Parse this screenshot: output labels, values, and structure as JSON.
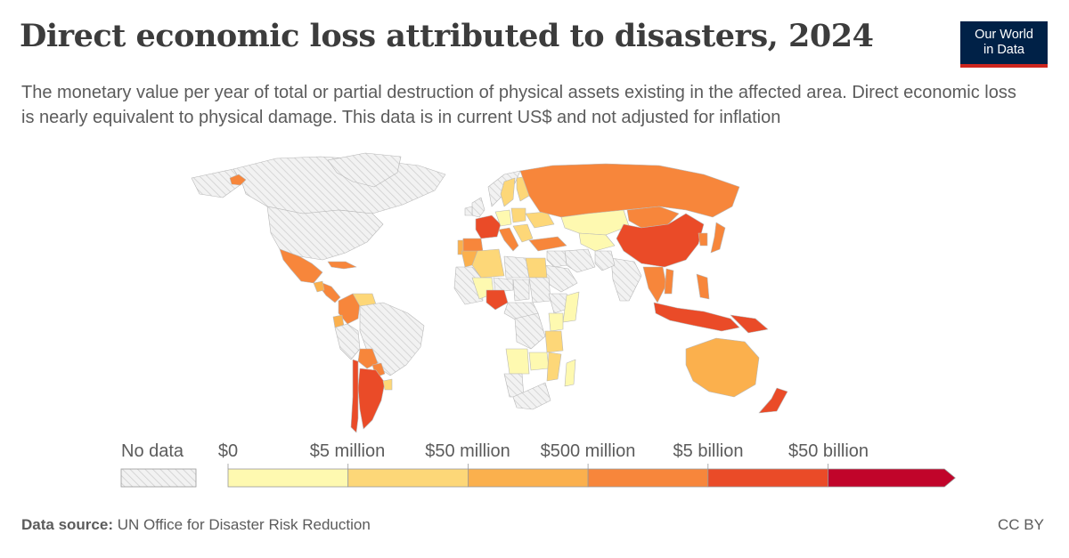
{
  "header": {
    "title": "Direct economic loss attributed to disasters, 2024",
    "subtitle": "The monetary value per year of total or partial destruction of physical assets existing in the affected area. Direct economic loss is nearly equivalent to physical damage. This data is in current US$ and not adjusted for inflation"
  },
  "logo": {
    "line1": "Our World",
    "line2": "in Data"
  },
  "legend": {
    "no_data_label": "No data",
    "bins": [
      {
        "label": "$0",
        "color": "#fef9b0"
      },
      {
        "label": "$5 million",
        "color": "#fdd778"
      },
      {
        "label": "$50 million",
        "color": "#fbb04d"
      },
      {
        "label": "$500 million",
        "color": "#f7863b"
      },
      {
        "label": "$5 billion",
        "color": "#ea4b28"
      },
      {
        "label": "$50 billion",
        "color": "#c1042a"
      }
    ]
  },
  "footer": {
    "source_label": "Data source:",
    "source_value": "UN Office for Disaster Risk Reduction",
    "license": "CC BY"
  },
  "colors": {
    "no_data_fill": "#f2f2f2",
    "no_data_hatch": "#cfcfcf",
    "border": "#b8b8b8",
    "logo_bg": "#002147",
    "logo_accent": "#ce261e"
  },
  "regions": [
    {
      "name": "canada",
      "bin": -1
    },
    {
      "name": "united-states",
      "bin": -1
    },
    {
      "name": "greenland",
      "bin": -1
    },
    {
      "name": "alaska",
      "bin": -1
    },
    {
      "name": "iceland",
      "bin": 3
    },
    {
      "name": "mexico",
      "bin": 3
    },
    {
      "name": "central-america",
      "bin": 3
    },
    {
      "name": "guatemala",
      "bin": 2
    },
    {
      "name": "cuba",
      "bin": 3
    },
    {
      "name": "colombia",
      "bin": 3
    },
    {
      "name": "venezuela",
      "bin": 1
    },
    {
      "name": "ecuador",
      "bin": 2
    },
    {
      "name": "peru",
      "bin": -1
    },
    {
      "name": "brazil",
      "bin": -1
    },
    {
      "name": "bolivia",
      "bin": 3
    },
    {
      "name": "paraguay",
      "bin": 3
    },
    {
      "name": "argentina",
      "bin": 4
    },
    {
      "name": "chile",
      "bin": 4
    },
    {
      "name": "uruguay",
      "bin": 1
    },
    {
      "name": "norway",
      "bin": -1
    },
    {
      "name": "sweden",
      "bin": 1
    },
    {
      "name": "finland",
      "bin": 1
    },
    {
      "name": "united-kingdom",
      "bin": -1
    },
    {
      "name": "ireland",
      "bin": -1
    },
    {
      "name": "france",
      "bin": 4
    },
    {
      "name": "spain",
      "bin": 3
    },
    {
      "name": "portugal",
      "bin": 2
    },
    {
      "name": "germany",
      "bin": 0
    },
    {
      "name": "poland",
      "bin": 1
    },
    {
      "name": "italy",
      "bin": 3
    },
    {
      "name": "balkans",
      "bin": 1
    },
    {
      "name": "ukraine",
      "bin": 1
    },
    {
      "name": "turkey",
      "bin": 3
    },
    {
      "name": "russia",
      "bin": 3
    },
    {
      "name": "kazakhstan",
      "bin": 0
    },
    {
      "name": "mongolia",
      "bin": 3
    },
    {
      "name": "china",
      "bin": 4
    },
    {
      "name": "japan",
      "bin": 3
    },
    {
      "name": "korea",
      "bin": 3
    },
    {
      "name": "india",
      "bin": -1
    },
    {
      "name": "pakistan",
      "bin": -1
    },
    {
      "name": "central-asia",
      "bin": 0
    },
    {
      "name": "iran",
      "bin": -1
    },
    {
      "name": "middle-east",
      "bin": -1
    },
    {
      "name": "saudi-arabia",
      "bin": -1
    },
    {
      "name": "southeast-asia",
      "bin": 3
    },
    {
      "name": "vietnam",
      "bin": 3
    },
    {
      "name": "philippines",
      "bin": 3
    },
    {
      "name": "indonesia",
      "bin": 4
    },
    {
      "name": "papua-new-guinea",
      "bin": 4
    },
    {
      "name": "australia",
      "bin": 2
    },
    {
      "name": "new-zealand",
      "bin": 4
    },
    {
      "name": "morocco",
      "bin": 2
    },
    {
      "name": "algeria",
      "bin": 1
    },
    {
      "name": "libya",
      "bin": -1
    },
    {
      "name": "egypt",
      "bin": 1
    },
    {
      "name": "west-africa",
      "bin": -1
    },
    {
      "name": "mali",
      "bin": 0
    },
    {
      "name": "niger",
      "bin": -1
    },
    {
      "name": "nigeria",
      "bin": 4
    },
    {
      "name": "chad",
      "bin": -1
    },
    {
      "name": "sudan",
      "bin": -1
    },
    {
      "name": "ethiopia",
      "bin": -1
    },
    {
      "name": "somalia",
      "bin": 0
    },
    {
      "name": "kenya",
      "bin": 0
    },
    {
      "name": "central-africa",
      "bin": -1
    },
    {
      "name": "drc",
      "bin": -1
    },
    {
      "name": "tanzania",
      "bin": 1
    },
    {
      "name": "angola",
      "bin": 0
    },
    {
      "name": "zambia",
      "bin": 0
    },
    {
      "name": "mozambique",
      "bin": 1
    },
    {
      "name": "madagascar",
      "bin": 0
    },
    {
      "name": "namibia",
      "bin": -1
    },
    {
      "name": "south-africa",
      "bin": -1
    }
  ]
}
